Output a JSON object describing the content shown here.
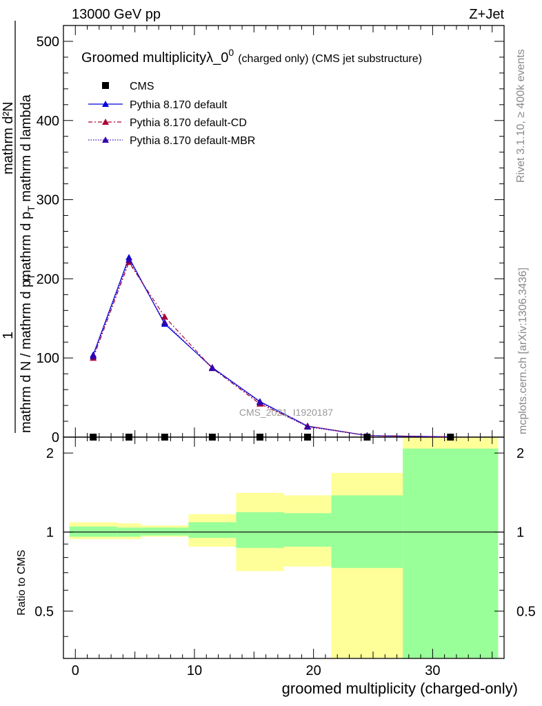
{
  "header": {
    "left": "13000 GeV pp",
    "right": "Z+Jet"
  },
  "title": {
    "main": "Groomed multiplicityλ_0",
    "sup": "0",
    "sub": "(charged only) (CMS jet substructure)"
  },
  "ylabel_top": {
    "one": "1",
    "den": "mathrm d N / mathrm d p",
    "den_sub": "T",
    "num": "mathrm d²N",
    "num_den": "mathrm d p",
    "num_den_sub": "T",
    "num_den_tail": " mathrm d lambda"
  },
  "ratio_ylabel": "Ratio to CMS",
  "xlabel": "groomed multiplicity (charged-only)",
  "watermark": "CMS_2021_I1920187",
  "side_text_1": "Rivet 3.1.10, ≥ 400k events",
  "side_text_2": "mcplots.cern.ch [arXiv:1306.3436]",
  "colors": {
    "default": "#0000dd",
    "cd": "#aa0033",
    "mbr": "#3300aa",
    "band_inner": "#99ff99",
    "band_outer": "#ffff99"
  },
  "legend": [
    {
      "label": "CMS",
      "style": "square"
    },
    {
      "label": "Pythia 8.170 default",
      "style": "solid"
    },
    {
      "label": "Pythia 8.170 default-CD",
      "style": "dashdot"
    },
    {
      "label": "Pythia 8.170 default-MBR",
      "style": "dotted"
    }
  ],
  "chart_data": {
    "type": "line",
    "top_panel": {
      "ylim": [
        0,
        520
      ],
      "yticks": [
        0,
        100,
        200,
        300,
        400,
        500
      ],
      "xlim": [
        -1,
        36
      ],
      "data": {
        "name": "CMS",
        "x": [
          1.5,
          4.5,
          7.5,
          11.5,
          15.5,
          19.5,
          24.5,
          31.5
        ],
        "y": [
          0,
          0,
          0,
          0,
          0,
          0,
          0,
          0
        ]
      },
      "series": [
        {
          "name": "Pythia 8.170 default",
          "x": [
            1.5,
            4.5,
            7.5,
            11.5,
            15.5,
            19.5,
            24.5,
            31.5
          ],
          "y": [
            104,
            227,
            143,
            88,
            45,
            14,
            2,
            0.3
          ]
        },
        {
          "name": "Pythia 8.170 default-CD",
          "x": [
            1.5,
            4.5,
            7.5,
            11.5,
            15.5,
            19.5,
            24.5,
            31.5
          ],
          "y": [
            100,
            221,
            152,
            87,
            42,
            14,
            2,
            0.3
          ]
        },
        {
          "name": "Pythia 8.170 default-MBR",
          "x": [
            1.5,
            4.5,
            7.5,
            11.5,
            15.5,
            19.5,
            24.5,
            31.5
          ],
          "y": [
            102,
            224,
            145,
            87,
            44,
            13,
            2,
            0.3
          ]
        }
      ]
    },
    "ratio_panel": {
      "ylim": [
        0.33,
        2.3
      ],
      "yticks": [
        0.5,
        1,
        2
      ],
      "xticks": [
        0,
        10,
        20,
        30
      ],
      "xlim": [
        -1,
        36
      ],
      "bins": [
        {
          "lo": -0.5,
          "hi": 3.5,
          "inner": [
            0.96,
            1.05
          ],
          "outer": [
            0.94,
            1.09
          ]
        },
        {
          "lo": 3.5,
          "hi": 5.5,
          "inner": [
            0.96,
            1.04
          ],
          "outer": [
            0.94,
            1.08
          ]
        },
        {
          "lo": 5.5,
          "hi": 9.5,
          "inner": [
            0.97,
            1.04
          ],
          "outer": [
            0.96,
            1.06
          ]
        },
        {
          "lo": 9.5,
          "hi": 13.5,
          "inner": [
            0.95,
            1.09
          ],
          "outer": [
            0.88,
            1.17
          ]
        },
        {
          "lo": 13.5,
          "hi": 17.5,
          "inner": [
            0.87,
            1.19
          ],
          "outer": [
            0.71,
            1.41
          ]
        },
        {
          "lo": 17.5,
          "hi": 21.5,
          "inner": [
            0.88,
            1.18
          ],
          "outer": [
            0.74,
            1.38
          ]
        },
        {
          "lo": 21.5,
          "hi": 27.5,
          "inner": [
            0.73,
            1.38
          ],
          "outer": [
            0.33,
            1.68
          ]
        },
        {
          "lo": 27.5,
          "hi": 35.5,
          "inner": [
            0.33,
            2.08
          ],
          "outer": [
            0.33,
            2.3
          ]
        }
      ]
    }
  }
}
